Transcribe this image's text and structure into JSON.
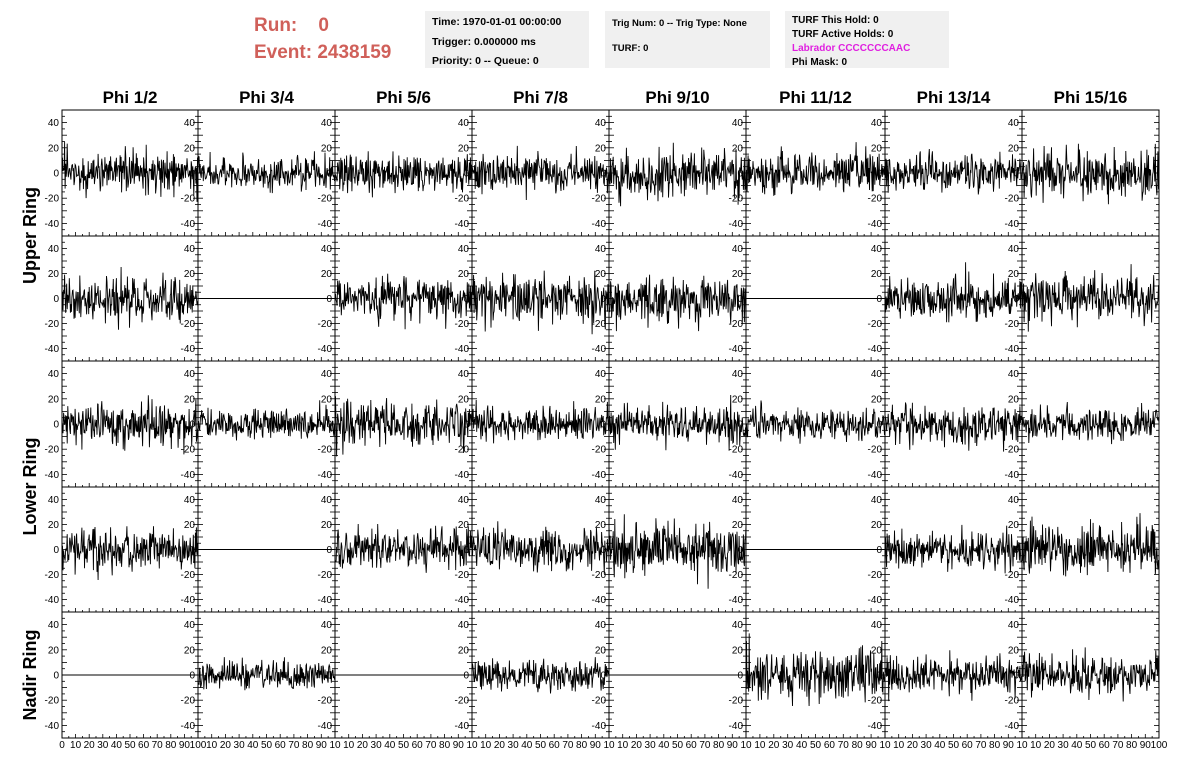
{
  "header": {
    "run_label": "Run:",
    "run_value": "0",
    "event_label": "Event:",
    "event_value": "2438159"
  },
  "info_box_1": {
    "time": "Time: 1970-01-01 00:00:00",
    "trigger": "Trigger: 0.000000 ms",
    "priority": "Priority: 0 -- Queue: 0"
  },
  "info_box_2": {
    "trig": "Trig Num: 0 -- Trig Type: None",
    "turf": "TURF: 0"
  },
  "info_box_3": {
    "this_hold": "TURF This Hold: 0",
    "active_holds": "TURF Active Holds: 0",
    "labrador": "Labrador CCCCCCCAAC",
    "phi_mask": "Phi Mask: 0"
  },
  "colors": {
    "run_event": "#d0605a",
    "labrador": "#e020e0",
    "trace": "#000000",
    "info_bg": "#f0f0f0"
  },
  "chart_data": {
    "type": "line",
    "description_grid": "5 rows x 8 columns of waveform panels",
    "column_titles": [
      "Phi 1/2",
      "Phi 3/4",
      "Phi 5/6",
      "Phi 7/8",
      "Phi 9/10",
      "Phi 11/12",
      "Phi 13/14",
      "Phi 15/16"
    ],
    "ring_labels": [
      {
        "label": "Upper Ring",
        "rows": [
          0,
          1
        ]
      },
      {
        "label": "Lower Ring",
        "rows": [
          2,
          3
        ]
      },
      {
        "label": "Nadir Ring",
        "rows": [
          4
        ]
      }
    ],
    "xlim": [
      0,
      100
    ],
    "ylim": [
      -50,
      50
    ],
    "y_ticks": [
      -40,
      -20,
      0,
      20,
      40
    ],
    "x_tick_labels_first": [
      "0",
      "10",
      "20",
      "30",
      "40",
      "50",
      "60",
      "70",
      "80",
      "90",
      "100"
    ],
    "x_tick_labels_other": [
      "10",
      "20",
      "30",
      "40",
      "50",
      "60",
      "70",
      "80",
      "90",
      "10"
    ],
    "x_tick_labels_last": [
      "10",
      "20",
      "30",
      "40",
      "50",
      "60",
      "70",
      "80",
      "90",
      "100"
    ],
    "panels": [
      [
        {
          "flat": false,
          "amp": 16,
          "seed": 11
        },
        {
          "flat": false,
          "amp": 12,
          "seed": 12
        },
        {
          "flat": false,
          "amp": 15,
          "seed": 13
        },
        {
          "flat": false,
          "amp": 14,
          "seed": 14
        },
        {
          "flat": false,
          "amp": 19,
          "seed": 15
        },
        {
          "flat": false,
          "amp": 15,
          "seed": 16
        },
        {
          "flat": false,
          "amp": 15,
          "seed": 17
        },
        {
          "flat": false,
          "amp": 17,
          "seed": 18
        }
      ],
      [
        {
          "flat": false,
          "amp": 17,
          "seed": 21
        },
        {
          "flat": true,
          "amp": 0,
          "seed": 22
        },
        {
          "flat": false,
          "amp": 16,
          "seed": 23
        },
        {
          "flat": false,
          "amp": 18,
          "seed": 24
        },
        {
          "flat": false,
          "amp": 18,
          "seed": 25
        },
        {
          "flat": true,
          "amp": 0,
          "seed": 26
        },
        {
          "flat": false,
          "amp": 16,
          "seed": 27
        },
        {
          "flat": false,
          "amp": 18,
          "seed": 28
        }
      ],
      [
        {
          "flat": false,
          "amp": 16,
          "seed": 31
        },
        {
          "flat": false,
          "amp": 11,
          "seed": 32
        },
        {
          "flat": false,
          "amp": 17,
          "seed": 33
        },
        {
          "flat": false,
          "amp": 12,
          "seed": 34
        },
        {
          "flat": false,
          "amp": 14,
          "seed": 35
        },
        {
          "flat": false,
          "amp": 12,
          "seed": 36
        },
        {
          "flat": false,
          "amp": 14,
          "seed": 37
        },
        {
          "flat": false,
          "amp": 12,
          "seed": 38
        }
      ],
      [
        {
          "flat": false,
          "amp": 15,
          "seed": 41
        },
        {
          "flat": true,
          "amp": 0,
          "seed": 42
        },
        {
          "flat": false,
          "amp": 15,
          "seed": 43
        },
        {
          "flat": false,
          "amp": 16,
          "seed": 44
        },
        {
          "flat": false,
          "amp": 19,
          "seed": 45
        },
        {
          "flat": true,
          "amp": 0,
          "seed": 46
        },
        {
          "flat": false,
          "amp": 14,
          "seed": 47
        },
        {
          "flat": false,
          "amp": 19,
          "seed": 48
        }
      ],
      [
        {
          "flat": true,
          "amp": 0,
          "seed": 51
        },
        {
          "flat": false,
          "amp": 10,
          "seed": 52
        },
        {
          "flat": true,
          "amp": 0,
          "seed": 53
        },
        {
          "flat": false,
          "amp": 12,
          "seed": 54
        },
        {
          "flat": true,
          "amp": 0,
          "seed": 55
        },
        {
          "flat": false,
          "amp": 19,
          "seed": 56
        },
        {
          "flat": false,
          "amp": 14,
          "seed": 57
        },
        {
          "flat": false,
          "amp": 14,
          "seed": 58
        }
      ]
    ]
  }
}
